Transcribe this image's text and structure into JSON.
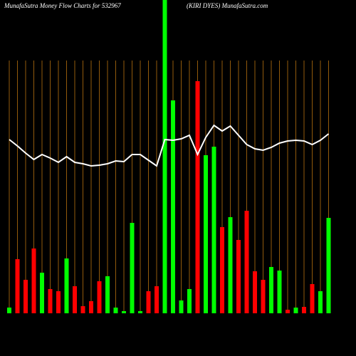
{
  "chart_data": {
    "type": "bar",
    "title": "MunafaSutra  Money Flow  Charts for 532967",
    "subtitle": "(KIRI DYES) MunafaSutra.com",
    "values": [
      8,
      76,
      47,
      91,
      57,
      34,
      31,
      77,
      38,
      10,
      17,
      45,
      52,
      8,
      3,
      127,
      3,
      31,
      38,
      440,
      299,
      18,
      34,
      326,
      222,
      234,
      121,
      135,
      103,
      144,
      59,
      47,
      65,
      60,
      5,
      8,
      9,
      41,
      31,
      134
    ],
    "bar_colors": [
      "#00ff00",
      "#ff0000",
      "#ff0000",
      "#ff0000",
      "#00ff00",
      "#ff0000",
      "#ff0000",
      "#00ff00",
      "#ff0000",
      "#ff0000",
      "#ff0000",
      "#ff0000",
      "#00ff00",
      "#00ff00",
      "#00ff00",
      "#00ff00",
      "#00ff00",
      "#ff0000",
      "#ff0000",
      "#00ff00",
      "#00ff00",
      "#00ff00",
      "#00ff00",
      "#ff0000",
      "#00ff00",
      "#00ff00",
      "#ff0000",
      "#00ff00",
      "#ff0000",
      "#ff0000",
      "#ff0000",
      "#ff0000",
      "#00ff00",
      "#00ff00",
      "#ff0000",
      "#00ff00",
      "#ff0000",
      "#ff0000",
      "#00ff00",
      "#00ff00"
    ],
    "line_values": [
      244,
      235,
      225,
      216,
      223,
      218,
      212,
      220,
      212,
      210,
      207,
      208,
      210,
      214,
      213,
      223,
      223,
      215,
      207,
      244,
      243,
      245,
      250,
      223,
      247,
      264,
      256,
      263,
      250,
      237,
      231,
      229,
      233,
      239,
      242,
      243,
      242,
      237,
      243,
      252
    ],
    "line_color": "#ffffff",
    "grid_color": "#b8720f",
    "ylim": [
      0,
      440
    ]
  }
}
